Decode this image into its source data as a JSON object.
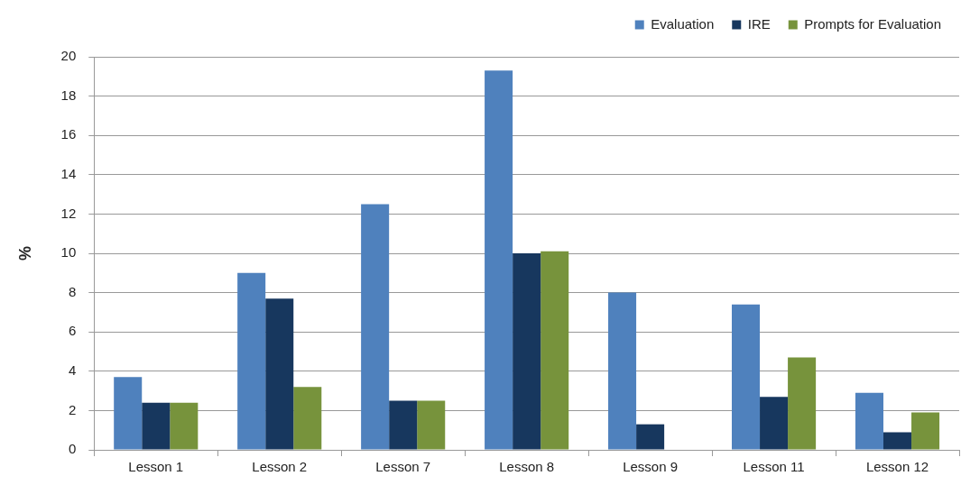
{
  "chart_data": {
    "type": "bar",
    "ylabel": "%",
    "categories": [
      "Lesson 1",
      "Lesson 2",
      "Lesson 7",
      "Lesson 8",
      "Lesson 9",
      "Lesson 11",
      "Lesson 12"
    ],
    "series": [
      {
        "name": "Evaluation",
        "color": "#4f81bd",
        "values": [
          3.7,
          9.0,
          12.5,
          19.3,
          8.0,
          7.4,
          2.9
        ]
      },
      {
        "name": "IRE",
        "color": "#17375e",
        "values": [
          2.4,
          7.7,
          2.5,
          10.0,
          1.3,
          2.7,
          0.9
        ]
      },
      {
        "name": "Prompts for Evaluation",
        "color": "#77933c",
        "values": [
          2.4,
          3.2,
          2.5,
          10.1,
          0,
          4.7,
          1.9
        ]
      }
    ],
    "ylim": [
      0,
      20
    ],
    "yticks": [
      0,
      2,
      4,
      6,
      8,
      10,
      12,
      14,
      16,
      18,
      20
    ],
    "grid": "y",
    "legend": "top right"
  }
}
